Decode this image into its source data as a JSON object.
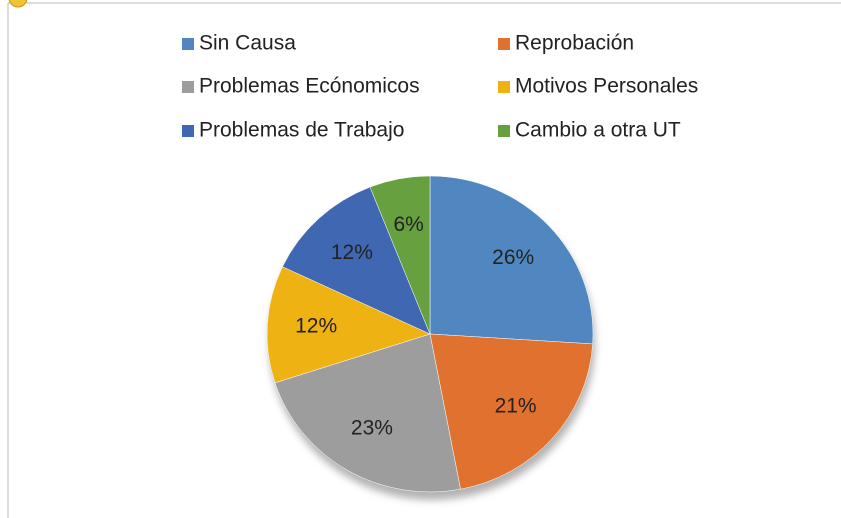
{
  "chart_data": {
    "type": "pie",
    "categories": [
      "Sin Causa",
      "Reprobación",
      "Problemas Ecónomicos",
      "Motivos Personales",
      "Problemas de Trabajo",
      "Cambio a otra UT"
    ],
    "values": [
      26,
      21,
      23,
      12,
      12,
      6
    ],
    "value_labels": [
      "26%",
      "21%",
      "23%",
      "12%",
      "12%",
      "6%"
    ],
    "colors": [
      "#5187c0",
      "#e0712e",
      "#9d9d9d",
      "#eeb213",
      "#3f67b2",
      "#66a03f"
    ],
    "legend": "top"
  }
}
